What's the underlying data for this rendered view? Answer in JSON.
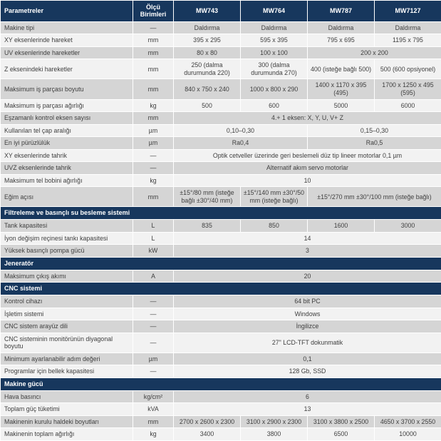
{
  "colors": {
    "header_bg": "#17375D",
    "row_stripe_gray": "#D5D5D5",
    "row_stripe_light": "#F2F2F2",
    "grid_line": "#FFFFFF",
    "body_text": "#3F3F3F"
  },
  "table": {
    "header": {
      "param_col": "Parametreler",
      "unit_col": "Ölçü Birimleri",
      "models": [
        "MW743",
        "MW764",
        "MW787",
        "MW7127"
      ]
    },
    "rows": [
      {
        "type": "row",
        "label": "Makine tipi",
        "unit": "—",
        "values": [
          {
            "text": "Daldırma",
            "span": 1
          },
          {
            "text": "Daldırma",
            "span": 1
          },
          {
            "text": "Daldırma",
            "span": 1
          },
          {
            "text": "Daldırma",
            "span": 1
          }
        ]
      },
      {
        "type": "row",
        "label": "XY eksenlerinde hareket",
        "unit": "mm",
        "values": [
          {
            "text": "395 x 295",
            "span": 1
          },
          {
            "text": "595 x 395",
            "span": 1
          },
          {
            "text": "795 x 695",
            "span": 1
          },
          {
            "text": "1195 x 795",
            "span": 1
          }
        ]
      },
      {
        "type": "row",
        "label": "UV eksenlerinde hareketler",
        "unit": "mm",
        "values": [
          {
            "text": "80 x 80",
            "span": 1
          },
          {
            "text": "100 x 100",
            "span": 1
          },
          {
            "text": "200 x 200",
            "span": 2
          }
        ]
      },
      {
        "type": "row",
        "label": "Z eksenindeki hareketler",
        "unit": "mm",
        "values": [
          {
            "text": "250 (dalma durumunda 220)",
            "span": 1
          },
          {
            "text": "300 (dalma durumunda 270)",
            "span": 1
          },
          {
            "text": "400 (isteğe bağlı 500)",
            "span": 1
          },
          {
            "text": "500 (600 opsiyonel)",
            "span": 1
          }
        ]
      },
      {
        "type": "row",
        "label": "Maksimum iş parçası boyutu",
        "unit": "mm",
        "values": [
          {
            "text": "840 x 750 x 240",
            "span": 1
          },
          {
            "text": "1000 x 800 x 290",
            "span": 1
          },
          {
            "text": "1400 x 1170 x 395 (495)",
            "span": 1
          },
          {
            "text": "1700 x 1250 x 495 (595)",
            "span": 1
          }
        ]
      },
      {
        "type": "row",
        "label": "Maksimum iş parçası ağırlığı",
        "unit": "kg",
        "values": [
          {
            "text": "500",
            "span": 1
          },
          {
            "text": "600",
            "span": 1
          },
          {
            "text": "5000",
            "span": 1
          },
          {
            "text": "6000",
            "span": 1
          }
        ]
      },
      {
        "type": "row",
        "label": "Eşzamanlı kontrol eksen sayısı",
        "unit": "mm",
        "values": [
          {
            "text": "4.+ 1 eksen: X, Y, U, V+ Z",
            "span": 4
          }
        ]
      },
      {
        "type": "row",
        "label": "Kullanılan tel çap aralığı",
        "unit": "µm",
        "values": [
          {
            "text": "0,10–0,30",
            "span": 2
          },
          {
            "text": "0,15–0,30",
            "span": 2
          }
        ]
      },
      {
        "type": "row",
        "label": "En iyi pürüzlülük",
        "unit": "µm",
        "values": [
          {
            "text": "Ra0,4",
            "span": 2
          },
          {
            "text": "Ra0,5",
            "span": 2
          }
        ]
      },
      {
        "type": "row",
        "label": "XY eksenlerinde tahrik",
        "unit": "—",
        "values": [
          {
            "text": "Optik cetveller üzerinde geri beslemeli düz tip lineer motorlar 0,1 µm",
            "span": 4
          }
        ]
      },
      {
        "type": "row",
        "label": "UVZ eksenlerinde tahrik",
        "unit": "—",
        "values": [
          {
            "text": "Alternatif akım servo motorlar",
            "span": 4
          }
        ]
      },
      {
        "type": "row",
        "label": "Maksimum tel bobini ağırlığı",
        "unit": "kg",
        "values": [
          {
            "text": "10",
            "span": 4
          }
        ]
      },
      {
        "type": "row",
        "label": "Eğim açısı",
        "unit": "mm",
        "values": [
          {
            "text": "±15°/80 mm (isteğe bağlı ±30°/40 mm)",
            "span": 1
          },
          {
            "text": "±15°/140 mm ±30°/50 mm (isteğe bağlı)",
            "span": 1
          },
          {
            "text": "±15°/270 mm ±30°/100 mm (isteğe bağlı)",
            "span": 2
          }
        ]
      },
      {
        "type": "section",
        "label": "Filtreleme ve basınçlı su besleme sistemi"
      },
      {
        "type": "row",
        "label": "Tank kapasitesi",
        "unit": "L",
        "values": [
          {
            "text": "835",
            "span": 1
          },
          {
            "text": "850",
            "span": 1
          },
          {
            "text": "1600",
            "span": 1
          },
          {
            "text": "3000",
            "span": 1
          }
        ]
      },
      {
        "type": "row",
        "label": "İyon değişim reçinesi tankı kapasitesi",
        "unit": "L",
        "values": [
          {
            "text": "14",
            "span": 4
          }
        ]
      },
      {
        "type": "row",
        "label": "Yüksek basınçlı pompa gücü",
        "unit": "kW",
        "values": [
          {
            "text": "3",
            "span": 4
          }
        ]
      },
      {
        "type": "section",
        "label": "Jeneratör"
      },
      {
        "type": "row",
        "label": "Maksimum çıkış akımı",
        "unit": "A",
        "values": [
          {
            "text": "20",
            "span": 4
          }
        ]
      },
      {
        "type": "section",
        "label": "CNC sistemi"
      },
      {
        "type": "row",
        "label": "Kontrol cihazı",
        "unit": "—",
        "values": [
          {
            "text": "64 bit PC",
            "span": 4
          }
        ]
      },
      {
        "type": "row",
        "label": "İşletim sistemi",
        "unit": "—",
        "values": [
          {
            "text": "Windows",
            "span": 4
          }
        ]
      },
      {
        "type": "row",
        "label": "CNC sistem arayüz dili",
        "unit": "—",
        "values": [
          {
            "text": "İngilizce",
            "span": 4
          }
        ]
      },
      {
        "type": "row",
        "label": "CNC sisteminin monitörünün diyagonal boyutu",
        "unit": "—",
        "values": [
          {
            "text": "27\" LCD-TFT dokunmatik",
            "span": 4
          }
        ]
      },
      {
        "type": "row",
        "label": "Minimum ayarlanabilir adım değeri",
        "unit": "µm",
        "values": [
          {
            "text": "0,1",
            "span": 4
          }
        ]
      },
      {
        "type": "row",
        "label": "Programlar için bellek kapasitesi",
        "unit": "—",
        "values": [
          {
            "text": "128 Gb, SSD",
            "span": 4
          }
        ]
      },
      {
        "type": "section",
        "label": "Makine gücü"
      },
      {
        "type": "row",
        "label": "Hava basıncı",
        "unit": "kg/cm²",
        "values": [
          {
            "text": "6",
            "span": 4
          }
        ]
      },
      {
        "type": "row",
        "label": "Toplam güç tüketimi",
        "unit": "kVA",
        "values": [
          {
            "text": "13",
            "span": 4
          }
        ]
      },
      {
        "type": "row",
        "label": "Makinenin kurulu haldeki boyutları",
        "unit": "mm",
        "values": [
          {
            "text": "2700 x 2600 x 2300",
            "span": 1
          },
          {
            "text": "3100 x 2900 x 2300",
            "span": 1
          },
          {
            "text": "3100 x 3800 x 2500",
            "span": 1
          },
          {
            "text": "4650 x 3700 x 2550",
            "span": 1
          }
        ]
      },
      {
        "type": "row",
        "label": "Makinenin toplam ağırlığı",
        "unit": "kg",
        "values": [
          {
            "text": "3400",
            "span": 1
          },
          {
            "text": "3800",
            "span": 1
          },
          {
            "text": "6500",
            "span": 1
          },
          {
            "text": "10000",
            "span": 1
          }
        ]
      }
    ]
  }
}
